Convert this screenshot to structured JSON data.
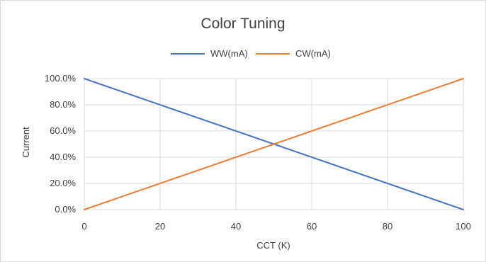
{
  "chart_data": {
    "type": "line",
    "title": "Color Tuning",
    "xlabel": "CCT (K)",
    "ylabel": "Current",
    "xlim": [
      0,
      100
    ],
    "ylim": [
      0,
      1
    ],
    "grid": true,
    "legend_position": "top",
    "x_ticks": [
      "0",
      "20",
      "40",
      "60",
      "80",
      "100"
    ],
    "y_ticks": [
      "0.0%",
      "20.0%",
      "40.0%",
      "60.0%",
      "80.0%",
      "100.0%"
    ],
    "series": [
      {
        "name": "WW(mA)",
        "color": "#4472C4",
        "points": [
          [
            0,
            1.0
          ],
          [
            100,
            0.0
          ]
        ]
      },
      {
        "name": "CW(mA)",
        "color": "#ED7D31",
        "points": [
          [
            0,
            0.0
          ],
          [
            100,
            1.0
          ]
        ]
      }
    ]
  }
}
